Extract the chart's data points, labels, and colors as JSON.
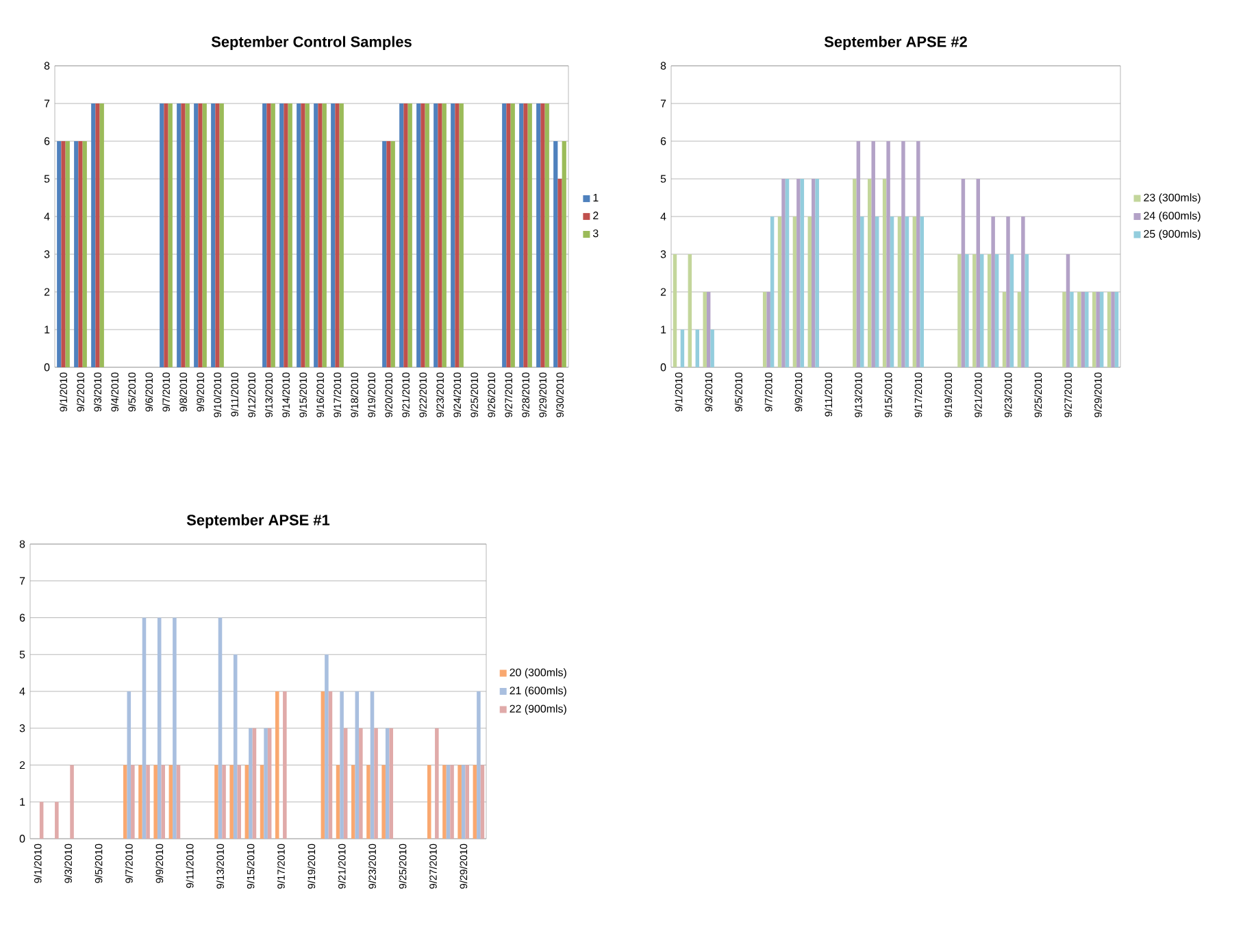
{
  "chart_data": [
    {
      "type": "bar",
      "title": "September Control Samples",
      "categories": [
        "9/1/2010",
        "9/2/2010",
        "9/3/2010",
        "9/4/2010",
        "9/5/2010",
        "9/6/2010",
        "9/7/2010",
        "9/8/2010",
        "9/9/2010",
        "9/10/2010",
        "9/11/2010",
        "9/12/2010",
        "9/13/2010",
        "9/14/2010",
        "9/15/2010",
        "9/16/2010",
        "9/17/2010",
        "9/18/2010",
        "9/19/2010",
        "9/20/2010",
        "9/21/2010",
        "9/22/2010",
        "9/23/2010",
        "9/24/2010",
        "9/25/2010",
        "9/26/2010",
        "9/27/2010",
        "9/28/2010",
        "9/29/2010",
        "9/30/2010"
      ],
      "series": [
        {
          "name": "1",
          "color": "#4f81bd",
          "values": [
            6,
            6,
            7,
            null,
            null,
            null,
            7,
            7,
            7,
            7,
            null,
            null,
            7,
            7,
            7,
            7,
            7,
            null,
            null,
            6,
            7,
            7,
            7,
            7,
            null,
            null,
            7,
            7,
            7,
            6
          ]
        },
        {
          "name": "2",
          "color": "#c0504d",
          "values": [
            6,
            6,
            7,
            null,
            null,
            null,
            7,
            7,
            7,
            7,
            null,
            null,
            7,
            7,
            7,
            7,
            7,
            null,
            null,
            6,
            7,
            7,
            7,
            7,
            null,
            null,
            7,
            7,
            7,
            5
          ]
        },
        {
          "name": "3",
          "color": "#9bbb59",
          "values": [
            6,
            6,
            7,
            null,
            null,
            null,
            7,
            7,
            7,
            7,
            null,
            null,
            7,
            7,
            7,
            7,
            7,
            null,
            null,
            6,
            7,
            7,
            7,
            7,
            null,
            null,
            7,
            7,
            7,
            6
          ]
        }
      ],
      "ylim": [
        0,
        8
      ],
      "yticks": [
        0,
        1,
        2,
        3,
        4,
        5,
        6,
        7,
        8
      ],
      "grid": "y",
      "legend": "right"
    },
    {
      "type": "bar",
      "title": "September APSE #2",
      "categories": [
        "9/1/2010",
        null,
        "9/3/2010",
        null,
        "9/5/2010",
        null,
        "9/7/2010",
        null,
        "9/9/2010",
        null,
        "9/11/2010",
        null,
        "9/13/2010",
        null,
        "9/15/2010",
        null,
        "9/17/2010",
        null,
        "9/19/2010",
        null,
        "9/21/2010",
        null,
        "9/23/2010",
        null,
        "9/25/2010",
        null,
        "9/27/2010",
        null,
        "9/29/2010",
        null
      ],
      "series": [
        {
          "name": "23 (300mls)",
          "color": "#c3d69b",
          "values": [
            3,
            3,
            2,
            null,
            null,
            null,
            2,
            4,
            4,
            4,
            null,
            null,
            5,
            5,
            5,
            4,
            4,
            null,
            null,
            3,
            3,
            3,
            2,
            2,
            null,
            null,
            2,
            2,
            2,
            2
          ]
        },
        {
          "name": "24 (600mls)",
          "color": "#b3a2c7",
          "values": [
            null,
            null,
            2,
            null,
            null,
            null,
            2,
            5,
            5,
            5,
            null,
            null,
            6,
            6,
            6,
            6,
            6,
            null,
            null,
            5,
            5,
            4,
            4,
            4,
            null,
            null,
            3,
            2,
            2,
            2
          ]
        },
        {
          "name": "25 (900mls)",
          "color": "#93cddd",
          "values": [
            1,
            1,
            1,
            null,
            null,
            null,
            4,
            5,
            5,
            5,
            null,
            null,
            4,
            4,
            4,
            4,
            4,
            null,
            null,
            3,
            3,
            3,
            3,
            3,
            null,
            null,
            2,
            2,
            2,
            2
          ]
        }
      ],
      "ylim": [
        0,
        8
      ],
      "yticks": [
        0,
        1,
        2,
        3,
        4,
        5,
        6,
        7,
        8
      ],
      "grid": "y",
      "legend": "right"
    },
    {
      "type": "bar",
      "title": "September APSE #1",
      "categories": [
        "9/1/2010",
        null,
        "9/3/2010",
        null,
        "9/5/2010",
        null,
        "9/7/2010",
        null,
        "9/9/2010",
        null,
        "9/11/2010",
        null,
        "9/13/2010",
        null,
        "9/15/2010",
        null,
        "9/17/2010",
        null,
        "9/19/2010",
        null,
        "9/21/2010",
        null,
        "9/23/2010",
        null,
        "9/25/2010",
        null,
        "9/27/2010",
        null,
        "9/29/2010",
        null
      ],
      "series": [
        {
          "name": "20 (300mls)",
          "color": "#f9a870",
          "values": [
            null,
            null,
            null,
            null,
            null,
            null,
            2,
            2,
            2,
            2,
            null,
            null,
            2,
            2,
            2,
            2,
            4,
            null,
            null,
            4,
            2,
            2,
            2,
            2,
            null,
            null,
            2,
            2,
            2,
            2
          ]
        },
        {
          "name": "21 (600mls)",
          "color": "#a9bfdf",
          "values": [
            null,
            null,
            null,
            null,
            null,
            null,
            4,
            6,
            6,
            6,
            null,
            null,
            6,
            5,
            3,
            3,
            null,
            null,
            null,
            5,
            4,
            4,
            4,
            3,
            null,
            null,
            null,
            2,
            2,
            4
          ]
        },
        {
          "name": "22 (900mls)",
          "color": "#e0aaa9",
          "values": [
            1,
            1,
            2,
            null,
            null,
            null,
            2,
            2,
            2,
            2,
            null,
            null,
            2,
            2,
            3,
            3,
            4,
            null,
            null,
            4,
            3,
            3,
            3,
            3,
            null,
            null,
            3,
            2,
            2,
            2
          ]
        }
      ],
      "ylim": [
        0,
        8
      ],
      "yticks": [
        0,
        1,
        2,
        3,
        4,
        5,
        6,
        7,
        8
      ],
      "grid": "y",
      "legend": "right"
    }
  ]
}
